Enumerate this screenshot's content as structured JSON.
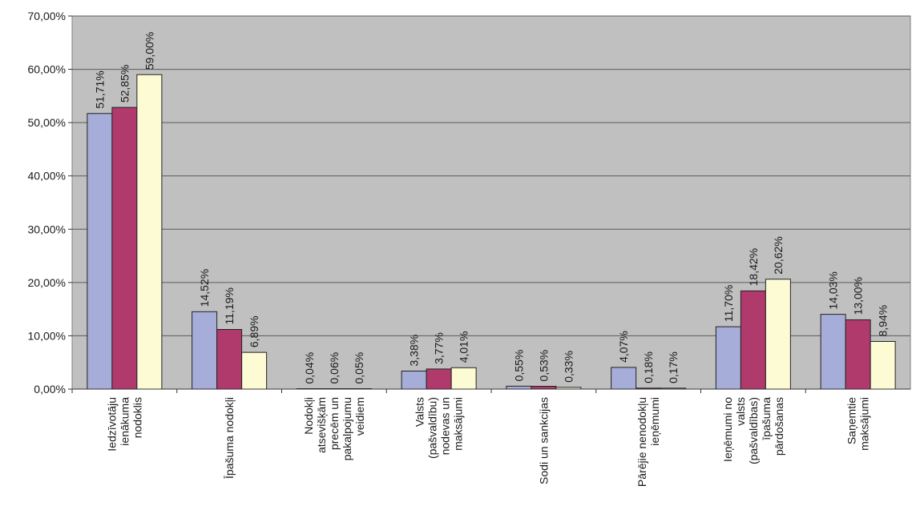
{
  "chart_data": {
    "type": "bar",
    "categories": [
      "Iedzīvotāju ienākuma nodoklis",
      "Īpašuma nodokļi",
      "Nodokļi atsevišķām precēm un pakalpojumu veidiem",
      "Valsts (pašvaldību) nodevas un maksājumi",
      "Sodi un sankcijas",
      "Pārējie nenodokļu ieņēmumi",
      "Ieņēmumi no valsts (pašvaldības) īpašuma pārdošanas",
      "Saņemtie maksājumi"
    ],
    "category_lines": [
      [
        "Iedzīvotāju",
        "ienākuma",
        "nodoklis"
      ],
      [
        "Īpašuma nodokļi"
      ],
      [
        "Nodokļi",
        "atsevišķām",
        "precēm un",
        "pakalpojumu",
        "veidiem"
      ],
      [
        "Valsts",
        "(pašvaldību)",
        "nodevas un",
        "maksājumi"
      ],
      [
        "Sodi un sankcijas"
      ],
      [
        "Pārējie nenodokļu",
        "ieņēmumi"
      ],
      [
        "Ieņēmumi no",
        "valsts",
        "(pašvaldības)",
        "īpašuma",
        "pārdošanas"
      ],
      [
        "Saņemtie",
        "maksājumi"
      ]
    ],
    "series": [
      {
        "values": [
          51.71,
          14.52,
          0.04,
          3.38,
          0.55,
          4.07,
          11.7,
          14.03
        ],
        "labels": [
          "51,71%",
          "14,52%",
          "0,04%",
          "3,38%",
          "0,55%",
          "4,07%",
          "11,70%",
          "14,03%"
        ],
        "color": "#a7add9"
      },
      {
        "values": [
          52.85,
          11.19,
          0.06,
          3.77,
          0.53,
          0.18,
          18.42,
          13.0
        ],
        "labels": [
          "52,85%",
          "11,19%",
          "0,06%",
          "3,77%",
          "0,53%",
          "0,18%",
          "18,42%",
          "13,00%"
        ],
        "color": "#b03a6b"
      },
      {
        "values": [
          59.0,
          6.89,
          0.05,
          4.01,
          0.33,
          0.17,
          20.62,
          8.94
        ],
        "labels": [
          "59,00%",
          "6,89%",
          "0,05%",
          "4,01%",
          "0,33%",
          "0,17%",
          "20,62%",
          "8,94%"
        ],
        "color": "#fdfbd4"
      }
    ],
    "ylim": [
      0,
      70
    ],
    "yticks": [
      0,
      10,
      20,
      30,
      40,
      50,
      60,
      70
    ],
    "ytick_labels": [
      "0,00%",
      "10,00%",
      "20,00%",
      "30,00%",
      "40,00%",
      "50,00%",
      "60,00%",
      "70,00%"
    ],
    "grid": true,
    "plot_background": "#c0c0c0",
    "legend": "none"
  }
}
